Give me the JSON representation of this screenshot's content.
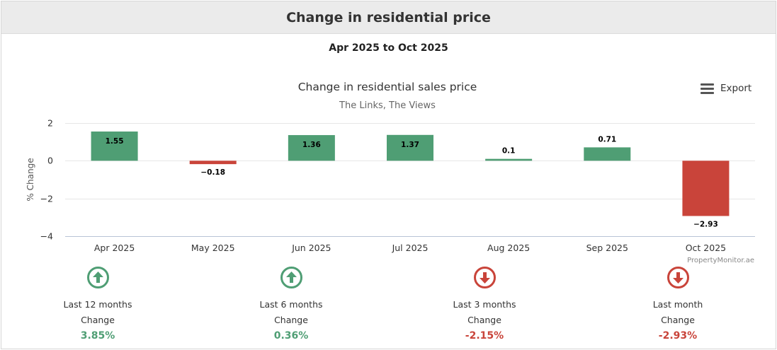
{
  "header": {
    "title": "Change in residential price"
  },
  "subtitle": "Apr 2025 to Oct 2025",
  "export_label": "Export",
  "credit": "PropertyMonitor.ae",
  "colors": {
    "positive": "#4f9e74",
    "negative": "#c9443a",
    "header_bg": "#ebebeb"
  },
  "chart_data": {
    "type": "bar",
    "title": "Change in residential sales price",
    "subtitle": "The Links, The Views",
    "ylabel": "% Change",
    "xlabel": "",
    "categories": [
      "Apr 2025",
      "May 2025",
      "Jun 2025",
      "Jul 2025",
      "Aug 2025",
      "Sep 2025",
      "Oct 2025"
    ],
    "values": [
      1.55,
      -0.18,
      1.36,
      1.37,
      0.1,
      0.71,
      -2.93
    ],
    "ylim": [
      -4,
      2
    ],
    "yticks": [
      2,
      0,
      -2,
      -4
    ],
    "ytick_labels": [
      "2",
      "0",
      "−2",
      "−4"
    ],
    "data_labels": [
      "1.55",
      "−0.18",
      "1.36",
      "1.37",
      "0.1",
      "0.71",
      "−2.93"
    ],
    "grid": true,
    "legend": "none"
  },
  "summary": [
    {
      "period": "Last 12 months",
      "change_label": "Change",
      "value": "3.85%",
      "direction": "up",
      "icon": "arrow-up-circle-icon"
    },
    {
      "period": "Last 6 months",
      "change_label": "Change",
      "value": "0.36%",
      "direction": "up",
      "icon": "arrow-up-circle-icon"
    },
    {
      "period": "Last 3 months",
      "change_label": "Change",
      "value": "-2.15%",
      "direction": "down",
      "icon": "arrow-down-circle-icon"
    },
    {
      "period": "Last month",
      "change_label": "Change",
      "value": "-2.93%",
      "direction": "down",
      "icon": "arrow-down-circle-icon"
    }
  ]
}
